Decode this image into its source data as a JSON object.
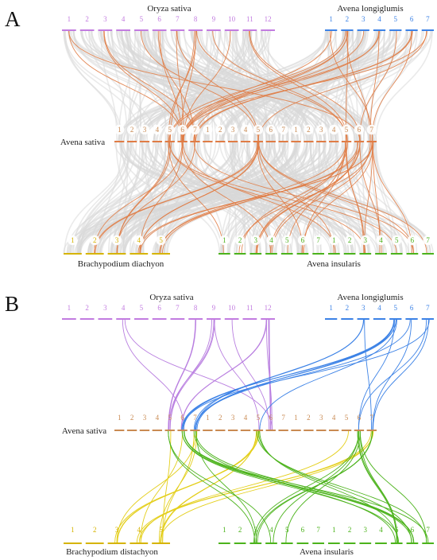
{
  "colors": {
    "oryza": "#c27ce0",
    "longiglumis": "#3c82e6",
    "sativa": "#c98a52",
    "brachy": "#d6b400",
    "insularis": "#4cb31c",
    "link_gray": "#d9d9d9",
    "link_orange": "#e07c45",
    "link_purple": "#b97fe0",
    "link_blue": "#3c82e6",
    "link_yellow": "#e4cf1c",
    "link_green": "#4cb31c"
  },
  "panels": [
    {
      "letter": "A",
      "genomes": {
        "oryza": "Oryza sativa",
        "longiglumis": "Avena longiglumis",
        "sativa": "Avena sativa",
        "brachy": "Brachypodium diachyon",
        "insularis": "Avena insularis"
      },
      "chromosomes": {
        "oryza": [
          "1",
          "2",
          "3",
          "4",
          "5",
          "6",
          "7",
          "8",
          "9",
          "10",
          "11",
          "12"
        ],
        "longiglumis": [
          "1",
          "2",
          "3",
          "4",
          "5",
          "6",
          "7"
        ],
        "sativa": [
          "1",
          "2",
          "3",
          "4",
          "5",
          "6",
          "7",
          "1",
          "2",
          "3",
          "4",
          "5",
          "6",
          "7",
          "1",
          "2",
          "3",
          "4",
          "5",
          "6",
          "7"
        ],
        "brachy": [
          "1",
          "2",
          "3",
          "4",
          "5"
        ],
        "insularis": [
          "1",
          "2",
          "3",
          "4",
          "5",
          "6",
          "7",
          "1",
          "2",
          "3",
          "4",
          "5",
          "6",
          "7"
        ]
      }
    },
    {
      "letter": "B",
      "genomes": {
        "oryza": "Oryza sativa",
        "longiglumis": "Avena longiglumis",
        "sativa": "Avena sativa",
        "brachy": "Brachypodium distachyon",
        "insularis": "Avena insularis"
      },
      "chromosomes": {
        "oryza": [
          "1",
          "2",
          "3",
          "4",
          "5",
          "6",
          "7",
          "8",
          "9",
          "10",
          "11",
          "12"
        ],
        "longiglumis": [
          "1",
          "2",
          "3",
          "4",
          "5",
          "6",
          "7"
        ],
        "sativa": [
          "1",
          "2",
          "3",
          "4",
          "5",
          "6",
          "7",
          "1",
          "2",
          "3",
          "4",
          "5",
          "6",
          "7",
          "1",
          "2",
          "3",
          "4",
          "5",
          "6",
          "7"
        ],
        "brachy": [
          "1",
          "2",
          "3",
          "4",
          "5"
        ],
        "insularis": [
          "1",
          "2",
          "3",
          "4",
          "5",
          "6",
          "7",
          "1",
          "2",
          "3",
          "4",
          "5",
          "6",
          "7"
        ]
      }
    }
  ]
}
